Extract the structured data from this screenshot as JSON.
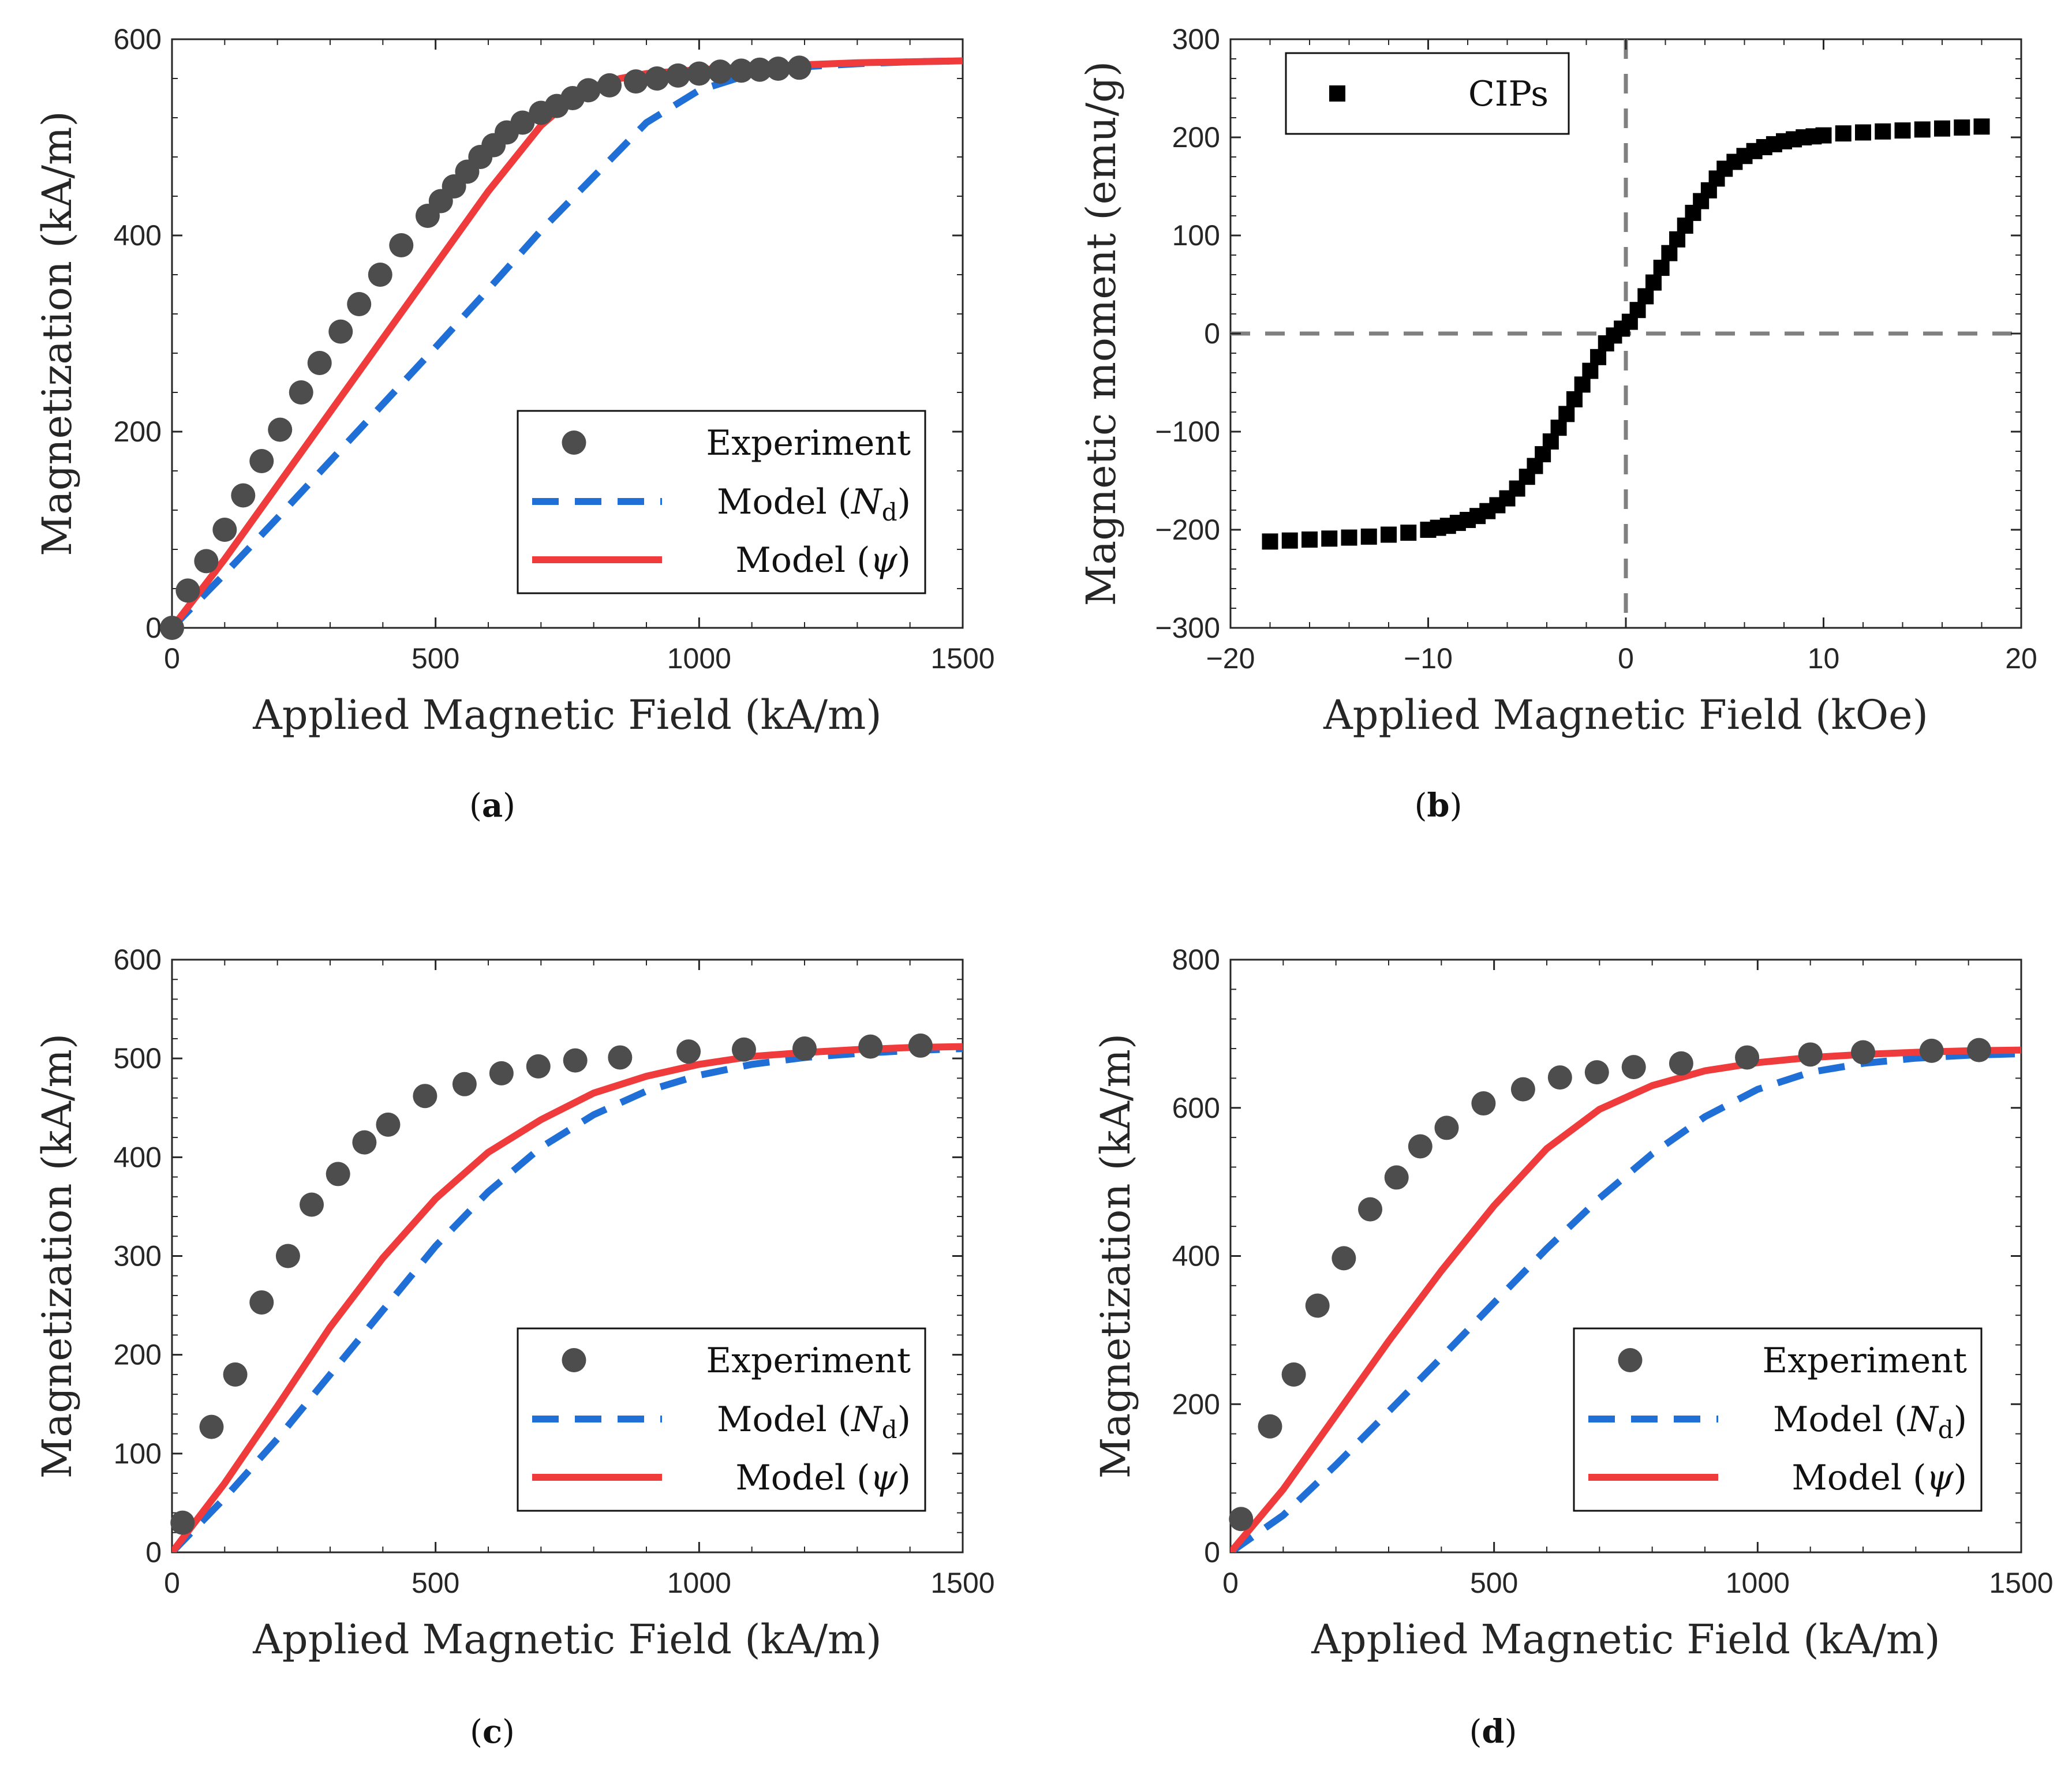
{
  "colors": {
    "experiment": "#4d4d4d",
    "model_nd": "#1f6fd6",
    "model_psi": "#ef3b3b",
    "cips": "#000000",
    "zero_line": "#808080",
    "axis": "#262626"
  },
  "chart_data": [
    {
      "id": "a",
      "type": "scatter+line",
      "caption_letter": "a",
      "xlabel": "Applied Magnetic Field (kA/m)",
      "ylabel": "Magnetization (kA/m)",
      "xlim": [
        0,
        1500
      ],
      "ylim": [
        0,
        600
      ],
      "xticks": [
        0,
        500,
        1000,
        1500
      ],
      "yticks": [
        0,
        200,
        400,
        600
      ],
      "legend": "bottom-right",
      "series": [
        {
          "name": "Experiment",
          "kind": "scatter-circle",
          "x": [
            0,
            30,
            65,
            100,
            135,
            170,
            205,
            245,
            280,
            320,
            355,
            395,
            435,
            485,
            510,
            535,
            560,
            585,
            610,
            635,
            665,
            700,
            730,
            760,
            790,
            830,
            880,
            920,
            960,
            1000,
            1040,
            1080,
            1115,
            1150,
            1190
          ],
          "y": [
            0,
            38,
            68,
            100,
            135,
            170,
            202,
            240,
            270,
            302,
            330,
            360,
            390,
            420,
            435,
            450,
            465,
            480,
            492,
            505,
            515,
            525,
            532,
            540,
            548,
            553,
            557,
            560,
            563,
            565,
            567,
            568,
            569,
            570,
            571
          ]
        },
        {
          "name": "Model (N_d)",
          "legend_main": "Model (",
          "legend_sym": "N",
          "legend_sub": "d",
          "legend_close": ")",
          "kind": "dashed",
          "x": [
            0,
            100,
            200,
            300,
            400,
            500,
            600,
            700,
            800,
            900,
            1000,
            1100,
            1200,
            1300,
            1400,
            1500
          ],
          "y": [
            0,
            55,
            112,
            170,
            228,
            286,
            345,
            405,
            460,
            515,
            548,
            565,
            572,
            575,
            577,
            578
          ]
        },
        {
          "name": "Model (psi)",
          "legend_main": "Model (",
          "legend_sym": "ψ",
          "legend_close": ")",
          "kind": "solid",
          "x": [
            0,
            100,
            200,
            300,
            400,
            500,
            600,
            700,
            750,
            800,
            850,
            900,
            1000,
            1100,
            1200,
            1300,
            1400,
            1500
          ],
          "y": [
            0,
            70,
            145,
            220,
            295,
            370,
            445,
            512,
            535,
            552,
            560,
            565,
            569,
            572,
            574,
            576,
            577,
            578
          ]
        }
      ]
    },
    {
      "id": "b",
      "type": "scatter",
      "caption_letter": "b",
      "xlabel": "Applied Magnetic Field (kOe)",
      "ylabel": "Magnetic moment (emu/g)",
      "xlim": [
        -20,
        20
      ],
      "ylim": [
        -300,
        300
      ],
      "xticks": [
        -20,
        -10,
        0,
        10,
        20
      ],
      "yticks": [
        -300,
        -200,
        -100,
        0,
        100,
        200,
        300
      ],
      "xtick_labels": [
        "−20",
        "−10",
        "0",
        "10",
        "20"
      ],
      "ytick_labels": [
        "−300",
        "−200",
        "−100",
        "0",
        "100",
        "200",
        "300"
      ],
      "legend": "top-left",
      "zero_lines": true,
      "series": [
        {
          "name": "CIPs",
          "kind": "scatter-square",
          "x": [
            -18,
            -17,
            -16,
            -15,
            -14,
            -13,
            -12,
            -11,
            -10,
            -9.5,
            -9,
            -8.5,
            -8,
            -7.5,
            -7,
            -6.5,
            -6,
            -5.5,
            -5,
            -4.6,
            -4.2,
            -3.8,
            -3.4,
            -3,
            -2.6,
            -2.2,
            -1.8,
            -1.4,
            -1,
            -0.6,
            -0.2,
            0.2,
            0.6,
            1,
            1.4,
            1.8,
            2.2,
            2.6,
            3,
            3.4,
            3.8,
            4.2,
            4.6,
            5,
            5.5,
            6,
            6.5,
            7,
            7.5,
            8,
            8.5,
            9,
            9.5,
            10,
            11,
            12,
            13,
            14,
            15,
            16,
            17,
            18
          ],
          "y": [
            -212,
            -211,
            -210,
            -209,
            -208,
            -207,
            -205,
            -203,
            -200,
            -198,
            -196,
            -193,
            -190,
            -186,
            -181,
            -175,
            -168,
            -158,
            -146,
            -135,
            -123,
            -110,
            -96,
            -82,
            -67,
            -52,
            -38,
            -24,
            -10,
            -2,
            5,
            12,
            24,
            38,
            52,
            67,
            82,
            96,
            110,
            123,
            135,
            146,
            158,
            168,
            175,
            181,
            186,
            190,
            193,
            196,
            198,
            200,
            201,
            202,
            204,
            205,
            206,
            207,
            208,
            209,
            210,
            211
          ]
        }
      ]
    },
    {
      "id": "c",
      "type": "scatter+line",
      "caption_letter": "c",
      "xlabel": "Applied Magnetic Field (kA/m)",
      "ylabel": "Magnetization (kA/m)",
      "xlim": [
        0,
        1500
      ],
      "ylim": [
        0,
        600
      ],
      "xticks": [
        0,
        500,
        1000,
        1500
      ],
      "yticks": [
        0,
        100,
        200,
        300,
        400,
        500,
        600
      ],
      "legend": "bottom-right",
      "series": [
        {
          "name": "Experiment",
          "kind": "scatter-circle",
          "x": [
            20,
            75,
            120,
            170,
            220,
            265,
            315,
            365,
            410,
            480,
            555,
            625,
            695,
            765,
            850,
            980,
            1085,
            1200,
            1325,
            1420
          ],
          "y": [
            30,
            127,
            180,
            253,
            300,
            352,
            383,
            415,
            433,
            462,
            474,
            485,
            492,
            498,
            501,
            507,
            509,
            510,
            512,
            513
          ]
        },
        {
          "name": "Model (N_d)",
          "legend_main": "Model (",
          "legend_sym": "N",
          "legend_sub": "d",
          "legend_close": ")",
          "kind": "dashed",
          "x": [
            0,
            100,
            200,
            300,
            400,
            500,
            600,
            700,
            800,
            900,
            1000,
            1100,
            1200,
            1300,
            1400,
            1500
          ],
          "y": [
            0,
            55,
            115,
            180,
            245,
            310,
            365,
            410,
            443,
            467,
            483,
            494,
            501,
            505,
            508,
            510
          ]
        },
        {
          "name": "Model (psi)",
          "legend_main": "Model (",
          "legend_sym": "ψ",
          "legend_close": ")",
          "kind": "solid",
          "x": [
            0,
            100,
            200,
            300,
            400,
            500,
            600,
            700,
            800,
            900,
            1000,
            1100,
            1200,
            1300,
            1400,
            1500
          ],
          "y": [
            0,
            70,
            148,
            228,
            298,
            358,
            405,
            438,
            465,
            482,
            494,
            502,
            506,
            509,
            511,
            512
          ]
        }
      ]
    },
    {
      "id": "d",
      "type": "scatter+line",
      "caption_letter": "d",
      "xlabel": "Applied Magnetic Field (kA/m)",
      "ylabel": "Magnetization (kA/m)",
      "xlim": [
        0,
        1500
      ],
      "ylim": [
        0,
        800
      ],
      "xticks": [
        0,
        500,
        1000,
        1500
      ],
      "yticks": [
        0,
        200,
        400,
        600,
        800
      ],
      "legend": "bottom-right",
      "series": [
        {
          "name": "Experiment",
          "kind": "scatter-circle",
          "x": [
            20,
            75,
            120,
            165,
            215,
            265,
            315,
            360,
            410,
            480,
            555,
            625,
            695,
            765,
            855,
            980,
            1100,
            1200,
            1330,
            1420
          ],
          "y": [
            45,
            170,
            240,
            333,
            397,
            463,
            506,
            548,
            573,
            606,
            625,
            641,
            648,
            655,
            660,
            668,
            672,
            675,
            677,
            678
          ]
        },
        {
          "name": "Model (N_d)",
          "legend_main": "Model (",
          "legend_sym": "N",
          "legend_sub": "d",
          "legend_close": ")",
          "kind": "dashed",
          "x": [
            0,
            100,
            200,
            300,
            400,
            500,
            600,
            700,
            800,
            900,
            1000,
            1100,
            1200,
            1300,
            1400,
            1500
          ],
          "y": [
            0,
            50,
            118,
            190,
            263,
            337,
            410,
            478,
            538,
            588,
            625,
            648,
            660,
            667,
            671,
            673
          ]
        },
        {
          "name": "Model (psi)",
          "legend_main": "Model (",
          "legend_sym": "ψ",
          "legend_close": ")",
          "kind": "solid",
          "x": [
            0,
            100,
            200,
            300,
            400,
            500,
            600,
            700,
            800,
            900,
            1000,
            1100,
            1200,
            1300,
            1400,
            1500
          ],
          "y": [
            0,
            85,
            185,
            285,
            380,
            468,
            545,
            598,
            630,
            650,
            661,
            668,
            672,
            675,
            677,
            678
          ]
        }
      ]
    }
  ]
}
